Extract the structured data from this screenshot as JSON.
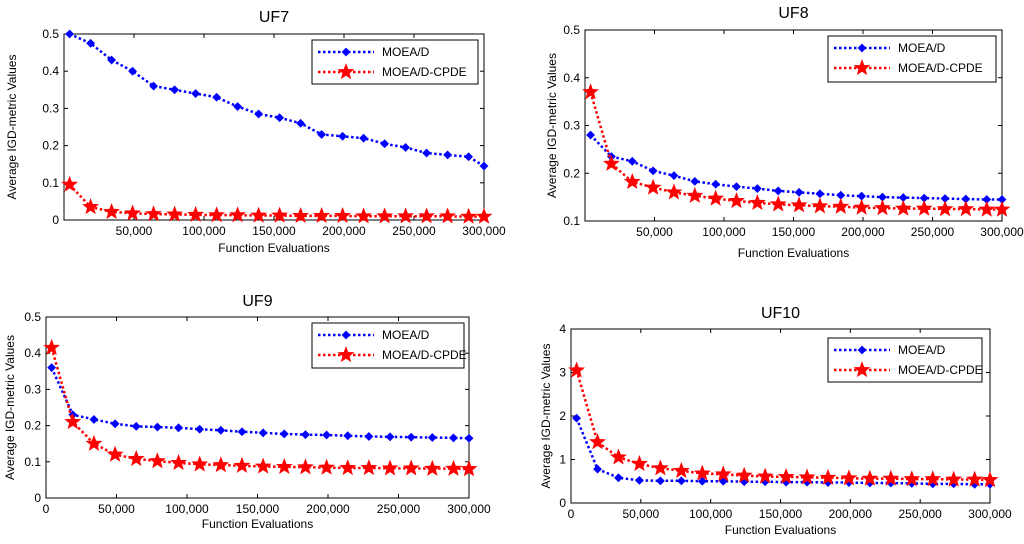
{
  "colors": {
    "moead": "#0000ff",
    "cpde": "#ff0000",
    "axis": "#000000",
    "background": "#ffffff"
  },
  "chart_data": [
    {
      "type": "line",
      "title": "UF7",
      "xlabel": "Function Evaluations",
      "ylabel": "Average IGD-metric Values",
      "xlim": [
        0,
        300000
      ],
      "ylim": [
        0,
        0.5
      ],
      "xticks": [
        50000,
        100000,
        150000,
        200000,
        250000,
        300000
      ],
      "xtick_labels": [
        "50,000",
        "100,000",
        "150,000",
        "200,000",
        "250,000",
        "300,000"
      ],
      "yticks": [
        0,
        0.1,
        0.2,
        0.3,
        0.4,
        0.5
      ],
      "ytick_labels": [
        "0",
        "0.1",
        "0.2",
        "0.3",
        "0.4",
        "0.5"
      ],
      "legend_position": "top-right",
      "x": [
        4000,
        19000,
        34000,
        49000,
        64000,
        79000,
        94000,
        109000,
        124000,
        139000,
        154000,
        169000,
        184000,
        199000,
        214000,
        229000,
        244000,
        259000,
        274000,
        289000,
        300000
      ],
      "series": [
        {
          "name": "MOEA/D",
          "marker": "diamond",
          "values": [
            0.5,
            0.475,
            0.43,
            0.4,
            0.36,
            0.35,
            0.34,
            0.33,
            0.305,
            0.285,
            0.275,
            0.26,
            0.23,
            0.225,
            0.22,
            0.205,
            0.195,
            0.18,
            0.175,
            0.17,
            0.145
          ]
        },
        {
          "name": "MOEA/D-CPDE",
          "marker": "star",
          "values": [
            0.095,
            0.035,
            0.022,
            0.018,
            0.016,
            0.015,
            0.014,
            0.013,
            0.013,
            0.012,
            0.012,
            0.011,
            0.011,
            0.011,
            0.01,
            0.01,
            0.01,
            0.01,
            0.01,
            0.009,
            0.009
          ]
        }
      ]
    },
    {
      "type": "line",
      "title": "UF8",
      "xlabel": "Function Evaluations",
      "ylabel": "Average IGD-metric Values",
      "xlim": [
        0,
        300000
      ],
      "ylim": [
        0.1,
        0.5
      ],
      "xticks": [
        50000,
        100000,
        150000,
        200000,
        250000,
        300000
      ],
      "xtick_labels": [
        "50,000",
        "100,000",
        "150,000",
        "200,000",
        "250,000",
        "300,000"
      ],
      "yticks": [
        0.1,
        0.2,
        0.3,
        0.4,
        0.5
      ],
      "ytick_labels": [
        "0.1",
        "0.2",
        "0.3",
        "0.4",
        "0.5"
      ],
      "legend_position": "top-right",
      "x": [
        4000,
        19000,
        34000,
        49000,
        64000,
        79000,
        94000,
        109000,
        124000,
        139000,
        154000,
        169000,
        184000,
        199000,
        214000,
        229000,
        244000,
        259000,
        274000,
        289000,
        300000
      ],
      "series": [
        {
          "name": "MOEA/D",
          "marker": "diamond",
          "values": [
            0.28,
            0.235,
            0.225,
            0.205,
            0.195,
            0.183,
            0.177,
            0.172,
            0.168,
            0.163,
            0.16,
            0.157,
            0.154,
            0.152,
            0.15,
            0.149,
            0.148,
            0.147,
            0.146,
            0.145,
            0.145
          ]
        },
        {
          "name": "MOEA/D-CPDE",
          "marker": "star",
          "values": [
            0.37,
            0.22,
            0.182,
            0.17,
            0.16,
            0.153,
            0.147,
            0.142,
            0.138,
            0.135,
            0.133,
            0.131,
            0.13,
            0.128,
            0.127,
            0.126,
            0.126,
            0.125,
            0.125,
            0.124,
            0.124
          ]
        }
      ]
    },
    {
      "type": "line",
      "title": "UF9",
      "xlabel": "Function Evaluations",
      "ylabel": "Average IGD-metric Values",
      "xlim": [
        0,
        300000
      ],
      "ylim": [
        0,
        0.5
      ],
      "xticks": [
        0,
        50000,
        100000,
        150000,
        200000,
        250000,
        300000
      ],
      "xtick_labels": [
        "0",
        "50,000",
        "100,000",
        "150,000",
        "200,000",
        "250,000",
        "300,000"
      ],
      "yticks": [
        0,
        0.1,
        0.2,
        0.3,
        0.4,
        0.5
      ],
      "ytick_labels": [
        "0",
        "0.1",
        "0.2",
        "0.3",
        "0.4",
        "0.5"
      ],
      "legend_position": "top-right",
      "x": [
        4000,
        19000,
        34000,
        49000,
        64000,
        79000,
        94000,
        109000,
        124000,
        139000,
        154000,
        169000,
        184000,
        199000,
        214000,
        229000,
        244000,
        259000,
        274000,
        289000,
        300000
      ],
      "series": [
        {
          "name": "MOEA/D",
          "marker": "diamond",
          "values": [
            0.36,
            0.23,
            0.217,
            0.205,
            0.198,
            0.196,
            0.194,
            0.19,
            0.187,
            0.183,
            0.18,
            0.177,
            0.175,
            0.174,
            0.172,
            0.17,
            0.169,
            0.168,
            0.167,
            0.166,
            0.165
          ]
        },
        {
          "name": "MOEA/D-CPDE",
          "marker": "star",
          "values": [
            0.415,
            0.21,
            0.15,
            0.12,
            0.108,
            0.102,
            0.097,
            0.093,
            0.091,
            0.089,
            0.087,
            0.086,
            0.085,
            0.084,
            0.083,
            0.083,
            0.082,
            0.082,
            0.081,
            0.081,
            0.08
          ]
        }
      ]
    },
    {
      "type": "line",
      "title": "UF10",
      "xlabel": "Function Evaluations",
      "ylabel": "Average IGD-metric Values",
      "xlim": [
        0,
        300000
      ],
      "ylim": [
        0,
        4
      ],
      "xticks": [
        0,
        50000,
        100000,
        150000,
        200000,
        250000,
        300000
      ],
      "xtick_labels": [
        "0",
        "50,000",
        "100,000",
        "150,000",
        "200,000",
        "250,000",
        "300,000"
      ],
      "yticks": [
        0,
        1,
        2,
        3,
        4
      ],
      "ytick_labels": [
        "0",
        "1",
        "2",
        "3",
        "4"
      ],
      "legend_position": "top-right",
      "x": [
        4000,
        19000,
        34000,
        49000,
        64000,
        79000,
        94000,
        109000,
        124000,
        139000,
        154000,
        169000,
        184000,
        199000,
        214000,
        229000,
        244000,
        259000,
        274000,
        289000,
        300000
      ],
      "series": [
        {
          "name": "MOEA/D",
          "marker": "diamond",
          "values": [
            1.95,
            0.78,
            0.58,
            0.52,
            0.51,
            0.51,
            0.5,
            0.5,
            0.49,
            0.49,
            0.48,
            0.48,
            0.47,
            0.47,
            0.46,
            0.46,
            0.45,
            0.44,
            0.44,
            0.43,
            0.43
          ]
        },
        {
          "name": "MOEA/D-CPDE",
          "marker": "star",
          "values": [
            3.05,
            1.4,
            1.05,
            0.9,
            0.8,
            0.74,
            0.68,
            0.66,
            0.63,
            0.61,
            0.6,
            0.59,
            0.58,
            0.57,
            0.56,
            0.56,
            0.55,
            0.55,
            0.54,
            0.54,
            0.53
          ]
        }
      ]
    }
  ]
}
